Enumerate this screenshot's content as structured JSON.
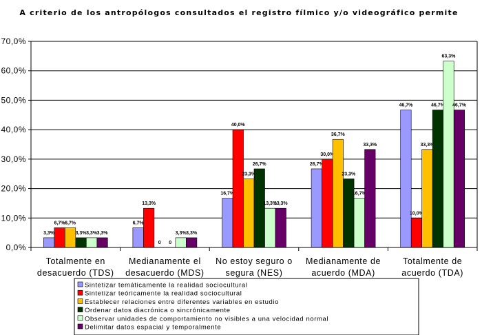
{
  "chart_data": {
    "type": "bar",
    "title": "A criterio de los antropólogos consultados el registro fílmico y/o videográfico permite",
    "categories": [
      [
        "Totalmente en",
        "desacuerdo (TDS)"
      ],
      [
        "Medianamente el",
        "desacuerdo (MDS)"
      ],
      [
        "No estoy seguro o",
        "segura (NES)"
      ],
      [
        "Medianamente de",
        "acuerdo (MDA)"
      ],
      [
        "Totalmente de",
        "acuerdo (TDA)"
      ]
    ],
    "yticks": [
      "0,0%",
      "10,0%",
      "20,0%",
      "30,0%",
      "40,0%",
      "50,0%",
      "60,0%",
      "70,0%"
    ],
    "ylim": [
      0,
      70
    ],
    "grid": true,
    "legend_position": "bottom",
    "series": [
      {
        "name": "Sintetizar temáticamente la realidad sociocultural",
        "color": "#9999ff",
        "values": [
          3.3,
          6.7,
          16.7,
          26.7,
          46.7
        ],
        "labels": [
          "3,3%",
          "6,7%",
          "16,7%",
          "26,7%",
          "46,7%"
        ]
      },
      {
        "name": "Sintetizar teóricamente la realidad sociocultural",
        "color": "#ff0000",
        "values": [
          6.7,
          13.3,
          40.0,
          30.0,
          10.0
        ],
        "labels": [
          "6,7%",
          "13,3%",
          "40,0%",
          "30,0%",
          "10,0%"
        ]
      },
      {
        "name": "Establecer relaciones entre diferentes variables en estudio",
        "color": "#ffc000",
        "values": [
          6.7,
          0,
          23.3,
          36.7,
          33.3
        ],
        "labels": [
          "6,7%",
          "0",
          "23,3%",
          "36,7%",
          "33,3%"
        ]
      },
      {
        "name": "Ordenar datos diacrónica o sincrónicamente",
        "color": "#003300",
        "values": [
          3.3,
          0,
          26.7,
          23.3,
          46.7
        ],
        "labels": [
          "3,3%",
          "0",
          "26,7%",
          "23,3%",
          "46,7%"
        ]
      },
      {
        "name": "Observar unidades de comportamiento no visibles a una velocidad normal",
        "color": "#ccffcc",
        "values": [
          3.3,
          3.3,
          13.3,
          16.7,
          63.3
        ],
        "labels": [
          "3,3%",
          "3,3%",
          "13,3%",
          "16,7%",
          "63,3%"
        ]
      },
      {
        "name": "Delimitar datos espacial y temporalmente",
        "color": "#660066",
        "values": [
          3.3,
          3.3,
          13.3,
          33.3,
          46.7
        ],
        "labels": [
          "3,3%",
          "3,3%",
          "13,3%",
          "33,3%",
          "46,7%"
        ]
      }
    ]
  }
}
